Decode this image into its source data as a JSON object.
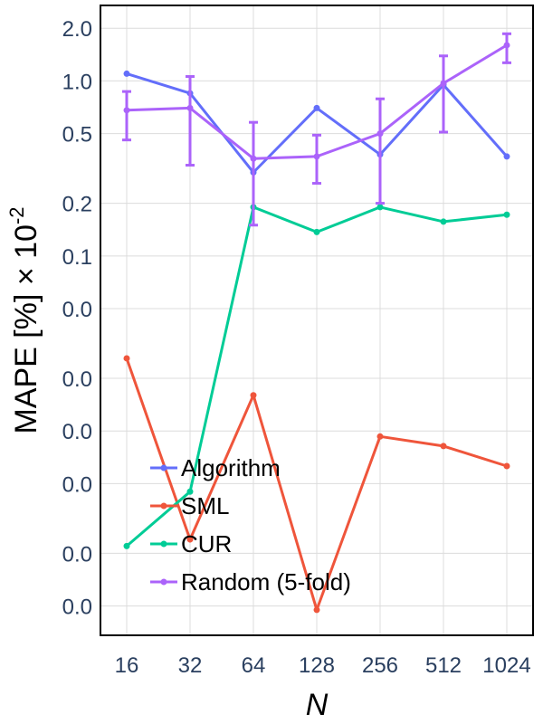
{
  "chart_data": {
    "type": "line",
    "xlabel": "N",
    "ylabel": "MAPE [%] × 10",
    "ylabel_exponent": "-2",
    "y_scale": "log",
    "categories": [
      "16",
      "32",
      "64",
      "128",
      "256",
      "512",
      "1024"
    ],
    "y_tick_values": [
      0.001,
      0.002,
      0.005,
      0.01,
      0.02,
      0.05,
      0.1,
      0.2,
      0.5,
      1.0,
      2.0
    ],
    "y_tick_labels": [
      "0.0",
      "0.0",
      "0.0",
      "0.0",
      "0.0",
      "0.0",
      "0.1",
      "0.2",
      "0.5",
      "1.0",
      "2.0"
    ],
    "ylim": [
      0.00068,
      2.7
    ],
    "grid": true,
    "legend_position": "bottom-left",
    "series": [
      {
        "name": "Algorithm",
        "color": "#636efa",
        "values": [
          1.1,
          0.85,
          0.3,
          0.7,
          0.38,
          0.95,
          0.37
        ]
      },
      {
        "name": "SML",
        "color": "#ef553b",
        "values": [
          0.026,
          0.0024,
          0.016,
          0.00095,
          0.0093,
          0.0082,
          0.0063
        ]
      },
      {
        "name": "CUR",
        "color": "#00cc96",
        "values": [
          0.0022,
          0.0045,
          0.19,
          0.137,
          0.19,
          0.157,
          0.172
        ]
      },
      {
        "name": "Random (5-fold)",
        "color": "#ab63fa",
        "values": [
          0.68,
          0.7,
          0.36,
          0.37,
          0.5,
          0.97,
          1.6
        ],
        "error_low": [
          0.46,
          0.33,
          0.15,
          0.26,
          0.2,
          0.51,
          1.27
        ],
        "error_high": [
          0.87,
          1.06,
          0.58,
          0.49,
          0.79,
          1.39,
          1.86
        ]
      }
    ]
  }
}
